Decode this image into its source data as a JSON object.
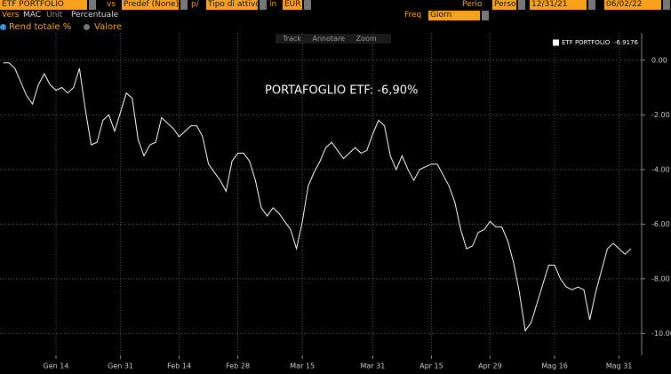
{
  "toolbar": {
    "security": "ETF PORTFOLIO",
    "vs_label": "vs",
    "benchmark": "Predef (None)",
    "per_label": "p/",
    "asset_type": "Tipo di attivo",
    "in_label": "in",
    "currency": "EUR",
    "period_label": "Perio",
    "period": "Perso",
    "start_date": "12/31/21",
    "end_date": "06/02/22",
    "version_label": "Vers",
    "version": "MAC",
    "unit_label": "Unit",
    "unit": "Percentuale",
    "freq_label": "Freq",
    "freq": "Giorn"
  },
  "options": {
    "total_return": "Rend totale %",
    "value": "Valore"
  },
  "chart_tools": [
    "Track",
    "Annotare",
    "Zoom"
  ],
  "chart_data": {
    "type": "line",
    "annotation": "PORTAFOGLIO ETF: -6,90%",
    "categories": [
      null,
      null,
      null,
      null,
      null,
      null,
      null,
      null,
      null,
      "Gen 14",
      null,
      null,
      null,
      null,
      null,
      null,
      null,
      null,
      null,
      null,
      "Gen 31",
      null,
      null,
      null,
      null,
      null,
      null,
      null,
      null,
      null,
      "Feb 14",
      null,
      null,
      null,
      null,
      null,
      null,
      null,
      null,
      null,
      "Feb 28",
      null,
      null,
      null,
      null,
      null,
      null,
      null,
      null,
      null,
      null,
      "Mar 15",
      null,
      null,
      null,
      null,
      null,
      null,
      null,
      null,
      null,
      null,
      null,
      "Mar 31",
      null,
      null,
      null,
      null,
      null,
      null,
      null,
      null,
      null,
      "Apr 15",
      null,
      null,
      null,
      null,
      null,
      null,
      null,
      null,
      null,
      "Apr 29",
      null,
      null,
      null,
      null,
      null,
      null,
      null,
      null,
      null,
      null,
      "Mag 16",
      null,
      null,
      null,
      null,
      null,
      null,
      null,
      null,
      null,
      null,
      "Mag 31",
      null,
      null
    ],
    "series": [
      {
        "name": "ETF PORTFOLIO",
        "legend_value": -6.9176,
        "color": "#ffffff",
        "values": [
          -0.1,
          -0.1,
          -0.3,
          -0.8,
          -1.3,
          -1.6,
          -0.9,
          -0.5,
          -0.9,
          -1.1,
          -1.0,
          -1.2,
          -1.0,
          -0.3,
          -1.8,
          -3.1,
          -3.0,
          -2.2,
          -2.0,
          -2.6,
          -1.9,
          -1.2,
          -1.4,
          -2.9,
          -3.5,
          -3.1,
          -3.0,
          -2.1,
          -2.3,
          -2.5,
          -2.8,
          -2.6,
          -2.4,
          -2.4,
          -2.8,
          -3.8,
          -4.1,
          -4.4,
          -4.8,
          -3.7,
          -3.4,
          -3.4,
          -3.7,
          -4.4,
          -5.4,
          -5.7,
          -5.4,
          -5.6,
          -5.9,
          -6.2,
          -6.9,
          -5.9,
          -4.6,
          -4.1,
          -3.7,
          -3.2,
          -3.0,
          -3.3,
          -3.6,
          -3.4,
          -3.2,
          -3.4,
          -3.3,
          -2.7,
          -2.2,
          -2.4,
          -3.5,
          -4.0,
          -3.5,
          -4.0,
          -4.4,
          -4.0,
          -3.9,
          -3.8,
          -3.8,
          -4.2,
          -4.6,
          -5.2,
          -6.2,
          -6.9,
          -6.8,
          -6.3,
          -6.2,
          -5.9,
          -6.1,
          -6.1,
          -6.6,
          -7.4,
          -8.5,
          -9.9,
          -9.6,
          -8.9,
          -8.2,
          -7.5,
          -7.5,
          -8.0,
          -8.3,
          -8.4,
          -8.3,
          -8.4,
          -9.5,
          -8.5,
          -7.7,
          -6.9,
          -6.7,
          -6.9,
          -7.1,
          -6.9
        ]
      }
    ],
    "ylim": [
      -10.8,
      1.0
    ],
    "yticks": [
      {
        "value": 0,
        "label": "0.00"
      },
      {
        "value": -2,
        "label": "-2.00"
      },
      {
        "value": -4,
        "label": "-4.00"
      },
      {
        "value": -6,
        "label": "-6.00"
      },
      {
        "value": -8,
        "label": "-8.00"
      },
      {
        "value": -10,
        "label": "-10.00"
      }
    ],
    "grid": true
  }
}
